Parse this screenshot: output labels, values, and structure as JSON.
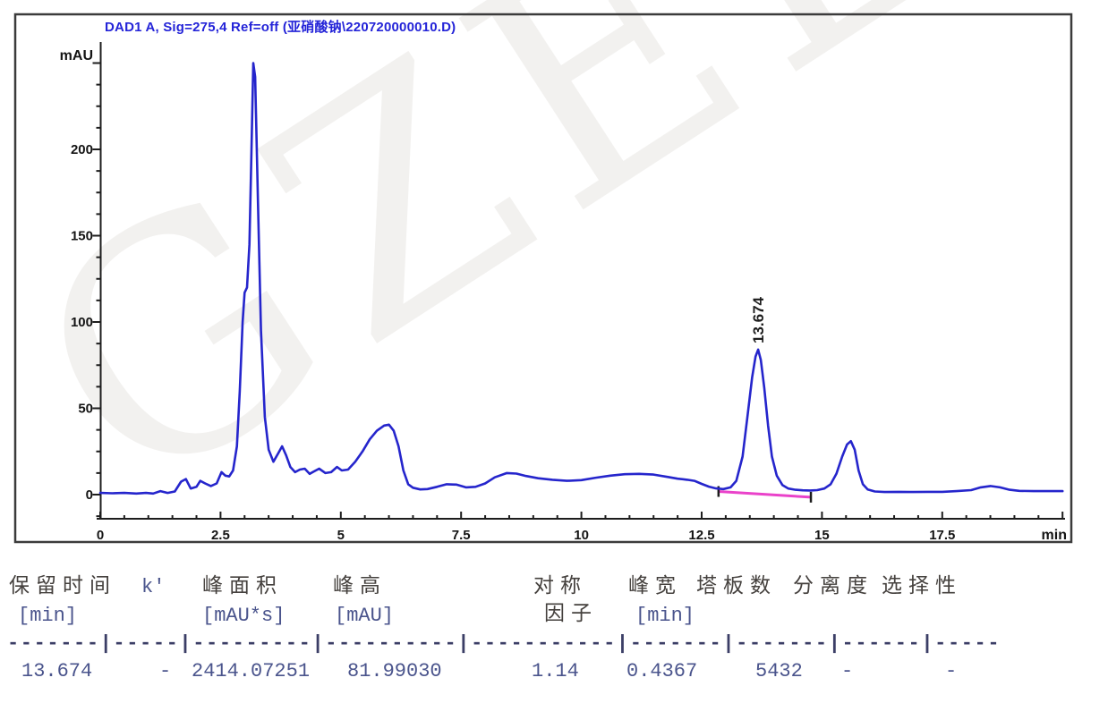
{
  "watermark": "GZEL",
  "chart": {
    "title": "DAD1 A, Sig=275,4 Ref=off (亚硝酸钠\\220720000010.D)",
    "y_unit": "mAU",
    "x_unit": "min",
    "peak_annotation": "13.674",
    "trace_color": "#2525cc",
    "baseline_color": "#ea42ca",
    "title_color": "#2424d8"
  },
  "chart_data": {
    "type": "line",
    "title": "DAD1 A, Sig=275,4 Ref=off (亚硝酸钠\\220720000010.D)",
    "xlabel": "min",
    "ylabel": "mAU",
    "xlim": [
      0,
      20
    ],
    "ylim": [
      -14,
      262
    ],
    "x_ticks": [
      0,
      2.5,
      5,
      7.5,
      10,
      12.5,
      15,
      17.5
    ],
    "y_ticks": [
      0,
      50,
      100,
      150,
      200
    ],
    "x_minor_step": 0.5,
    "y_minor_step": 12.5,
    "grid": false,
    "legend": "none",
    "series": [
      {
        "name": "DAD1 A",
        "points": [
          [
            0,
            1
          ],
          [
            0.25,
            0.8
          ],
          [
            0.5,
            1
          ],
          [
            0.75,
            0.6
          ],
          [
            0.95,
            1
          ],
          [
            1.1,
            0.6
          ],
          [
            1.25,
            2
          ],
          [
            1.4,
            1
          ],
          [
            1.55,
            1.8
          ],
          [
            1.68,
            7.5
          ],
          [
            1.78,
            9
          ],
          [
            1.88,
            3.5
          ],
          [
            2.0,
            4.5
          ],
          [
            2.08,
            8
          ],
          [
            2.18,
            6.5
          ],
          [
            2.3,
            5
          ],
          [
            2.42,
            6.5
          ],
          [
            2.52,
            13
          ],
          [
            2.6,
            11
          ],
          [
            2.68,
            10.5
          ],
          [
            2.76,
            14
          ],
          [
            2.84,
            28
          ],
          [
            2.9,
            60
          ],
          [
            2.96,
            100
          ],
          [
            3.0,
            117
          ],
          [
            3.05,
            120
          ],
          [
            3.1,
            145
          ],
          [
            3.14,
            195
          ],
          [
            3.18,
            250
          ],
          [
            3.22,
            242
          ],
          [
            3.28,
            168
          ],
          [
            3.34,
            95
          ],
          [
            3.42,
            45
          ],
          [
            3.5,
            26
          ],
          [
            3.6,
            19
          ],
          [
            3.7,
            24
          ],
          [
            3.78,
            28
          ],
          [
            3.86,
            23
          ],
          [
            3.95,
            16
          ],
          [
            4.05,
            13
          ],
          [
            4.15,
            14.5
          ],
          [
            4.25,
            15
          ],
          [
            4.35,
            12
          ],
          [
            4.45,
            13.5
          ],
          [
            4.55,
            15
          ],
          [
            4.68,
            12.5
          ],
          [
            4.8,
            13
          ],
          [
            4.92,
            16
          ],
          [
            5.02,
            14
          ],
          [
            5.15,
            14.5
          ],
          [
            5.3,
            19
          ],
          [
            5.45,
            25
          ],
          [
            5.6,
            32
          ],
          [
            5.75,
            37
          ],
          [
            5.9,
            40
          ],
          [
            6.0,
            40.5
          ],
          [
            6.1,
            37
          ],
          [
            6.2,
            28
          ],
          [
            6.3,
            14
          ],
          [
            6.4,
            6
          ],
          [
            6.5,
            4
          ],
          [
            6.65,
            3
          ],
          [
            6.8,
            3.2
          ],
          [
            7.0,
            4.5
          ],
          [
            7.2,
            6
          ],
          [
            7.4,
            5.8
          ],
          [
            7.6,
            4.2
          ],
          [
            7.8,
            4.5
          ],
          [
            8.0,
            6.5
          ],
          [
            8.2,
            10
          ],
          [
            8.45,
            12.5
          ],
          [
            8.65,
            12.2
          ],
          [
            8.85,
            10.8
          ],
          [
            9.1,
            9.5
          ],
          [
            9.4,
            8.6
          ],
          [
            9.7,
            8
          ],
          [
            10.0,
            8.4
          ],
          [
            10.3,
            9.8
          ],
          [
            10.6,
            11
          ],
          [
            10.9,
            11.8
          ],
          [
            11.2,
            12
          ],
          [
            11.5,
            11.6
          ],
          [
            11.8,
            10.2
          ],
          [
            12.0,
            9.2
          ],
          [
            12.2,
            8.6
          ],
          [
            12.35,
            8
          ],
          [
            12.5,
            6.2
          ],
          [
            12.65,
            4.6
          ],
          [
            12.8,
            3.6
          ],
          [
            12.95,
            3.2
          ],
          [
            13.1,
            4.2
          ],
          [
            13.22,
            8
          ],
          [
            13.35,
            22
          ],
          [
            13.45,
            45
          ],
          [
            13.55,
            68
          ],
          [
            13.62,
            80
          ],
          [
            13.674,
            84
          ],
          [
            13.73,
            78
          ],
          [
            13.8,
            62
          ],
          [
            13.88,
            40
          ],
          [
            13.96,
            22
          ],
          [
            14.06,
            11
          ],
          [
            14.18,
            5.5
          ],
          [
            14.3,
            3.5
          ],
          [
            14.45,
            2.8
          ],
          [
            14.6,
            2.5
          ],
          [
            14.75,
            2.4
          ],
          [
            14.9,
            2.6
          ],
          [
            15.05,
            3.5
          ],
          [
            15.18,
            6
          ],
          [
            15.3,
            12
          ],
          [
            15.42,
            22
          ],
          [
            15.52,
            29
          ],
          [
            15.6,
            31
          ],
          [
            15.68,
            26
          ],
          [
            15.76,
            14
          ],
          [
            15.85,
            6
          ],
          [
            15.95,
            3
          ],
          [
            16.1,
            1.8
          ],
          [
            16.3,
            1.5
          ],
          [
            16.6,
            1.6
          ],
          [
            16.9,
            1.5
          ],
          [
            17.2,
            1.6
          ],
          [
            17.5,
            1.6
          ],
          [
            17.8,
            2
          ],
          [
            18.1,
            2.6
          ],
          [
            18.3,
            4.2
          ],
          [
            18.5,
            5
          ],
          [
            18.7,
            4.2
          ],
          [
            18.9,
            2.8
          ],
          [
            19.1,
            2.2
          ],
          [
            19.4,
            2
          ],
          [
            19.7,
            2
          ],
          [
            20.0,
            2
          ]
        ]
      }
    ],
    "integration_baseline": {
      "from": [
        12.85,
        1.8
      ],
      "to": [
        14.77,
        -1.5
      ]
    },
    "annotations": [
      {
        "text": "13.674",
        "x": 13.674,
        "y": 84,
        "rotation": -90
      }
    ]
  },
  "report": {
    "headers": [
      {
        "line1": "保留时间",
        "line2": "[min]"
      },
      {
        "line1": "k'",
        "line2": ""
      },
      {
        "line1": "峰面积",
        "line2": "[mAU*s]"
      },
      {
        "line1": "峰高",
        "line2": "[mAU]"
      },
      {
        "line1": "对称",
        "line2": "因子"
      },
      {
        "line1": "峰宽",
        "line2": "[min]"
      },
      {
        "line1": "塔板数",
        "line2": ""
      },
      {
        "line1": "分离度",
        "line2": ""
      },
      {
        "line1": "选择性",
        "line2": ""
      }
    ],
    "separator": "-------|-----|---------|----------|-----------|-------|-------|------|-----",
    "row": [
      "13.674",
      "-",
      "2414.07251",
      "81.99030",
      "1.14",
      "0.4367",
      "5432",
      "-",
      "-"
    ]
  }
}
